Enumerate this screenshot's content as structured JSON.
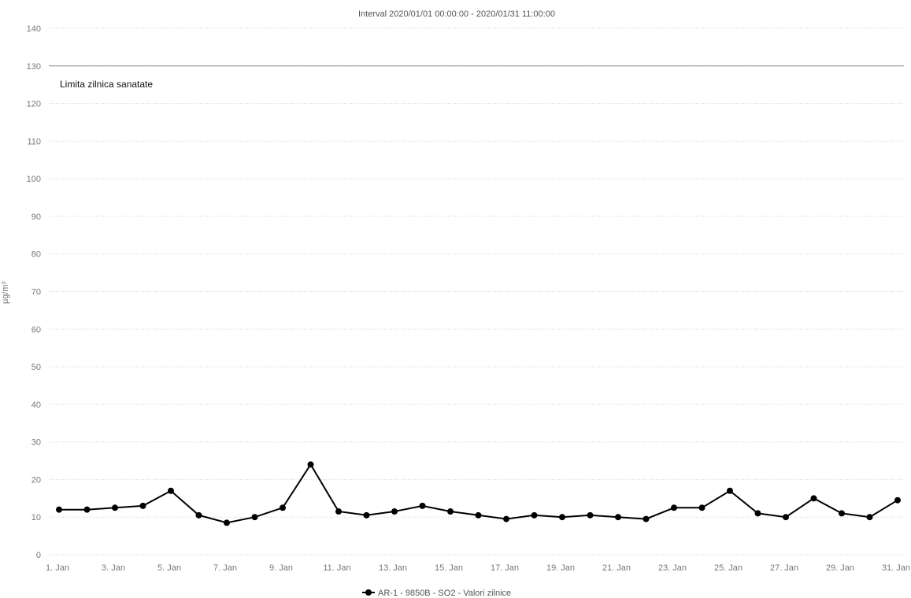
{
  "chart_data": {
    "type": "line",
    "title": "Interval 2020/01/01 00:00:00 - 2020/01/31 11:00:00",
    "ylabel": "µg/m³",
    "ylim": [
      0,
      140
    ],
    "yticks": [
      0,
      10,
      20,
      30,
      40,
      50,
      60,
      70,
      80,
      90,
      100,
      110,
      120,
      130,
      140
    ],
    "x": [
      "1. Jan",
      "2. Jan",
      "3. Jan",
      "4. Jan",
      "5. Jan",
      "6. Jan",
      "7. Jan",
      "8. Jan",
      "9. Jan",
      "10. Jan",
      "11. Jan",
      "12. Jan",
      "13. Jan",
      "14. Jan",
      "15. Jan",
      "16. Jan",
      "17. Jan",
      "18. Jan",
      "19. Jan",
      "20. Jan",
      "21. Jan",
      "22. Jan",
      "23. Jan",
      "24. Jan",
      "25. Jan",
      "26. Jan",
      "27. Jan",
      "28. Jan",
      "29. Jan",
      "30. Jan",
      "31. Jan"
    ],
    "xtick_labels": [
      "1. Jan",
      "3. Jan",
      "5. Jan",
      "7. Jan",
      "9. Jan",
      "11. Jan",
      "13. Jan",
      "15. Jan",
      "17. Jan",
      "19. Jan",
      "21. Jan",
      "23. Jan",
      "25. Jan",
      "27. Jan",
      "29. Jan",
      "31. Jan"
    ],
    "series": [
      {
        "name": "AR-1 - 9850B - SO2 - Valori zilnice",
        "color": "#000000",
        "values": [
          12,
          12,
          12.5,
          13,
          17,
          10.5,
          8.5,
          10,
          12.5,
          24,
          11.5,
          10.5,
          11.5,
          13,
          11.5,
          10.5,
          9.5,
          10.5,
          10,
          10.5,
          10,
          9.5,
          12.5,
          12.5,
          17,
          11,
          10,
          15,
          11,
          10,
          14.5
        ]
      }
    ],
    "plot_lines": [
      {
        "value": 130,
        "label": "Limita zilnica sanatate",
        "color": "#8a8a8a"
      }
    ],
    "grid": true,
    "legend": "bottom-center"
  }
}
